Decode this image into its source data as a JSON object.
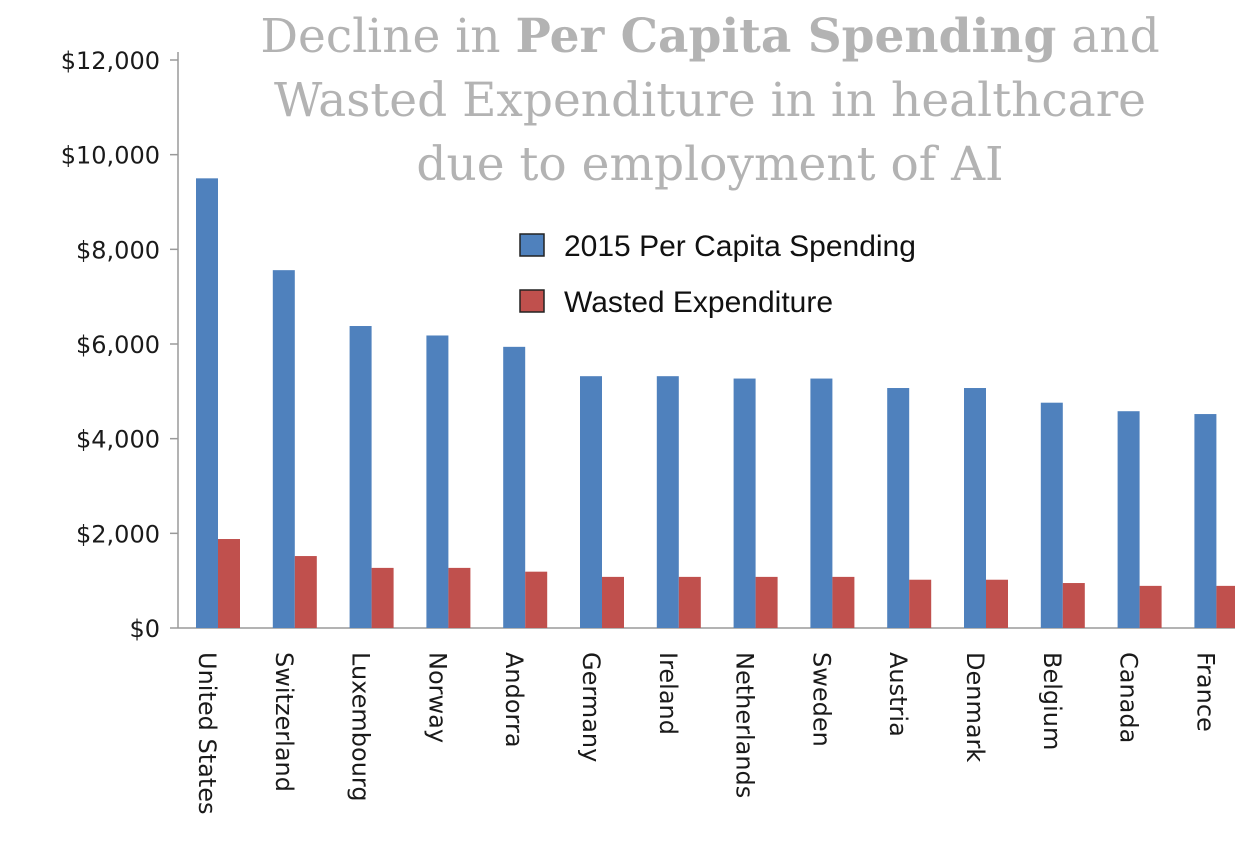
{
  "chart_data": {
    "type": "bar",
    "title": {
      "line1": {
        "pre": "Decline in ",
        "bold": "Per Capita Spending",
        "post": " and"
      },
      "line2": "Wasted Expenditure in in healthcare",
      "line3": "due to employment of AI"
    },
    "categories": [
      "United States",
      "Switzerland",
      "Luxembourg",
      "Norway",
      "Andorra",
      "Germany",
      "Ireland",
      "Netherlands",
      "Sweden",
      "Austria",
      "Denmark",
      "Belgium",
      "Canada",
      "France"
    ],
    "series": [
      {
        "name": "2015 Per Capita Spending",
        "color": "#4f81bd",
        "values": [
          9500,
          7560,
          6380,
          6180,
          5940,
          5320,
          5320,
          5270,
          5270,
          5070,
          5070,
          4760,
          4580,
          4520
        ]
      },
      {
        "name": "Wasted Expenditure",
        "color": "#c0504d",
        "values": [
          1880,
          1520,
          1270,
          1270,
          1190,
          1080,
          1080,
          1080,
          1080,
          1020,
          1020,
          950,
          890,
          890
        ]
      }
    ],
    "yticks": [
      "$0",
      "$2,000",
      "$4,000",
      "$6,000",
      "$8,000",
      "$10,000",
      "$12,000"
    ],
    "ytick_values": [
      0,
      2000,
      4000,
      6000,
      8000,
      10000,
      12000
    ],
    "ylim": [
      0,
      12000
    ],
    "legend_placement": "top-right, inside plot",
    "grid": false
  }
}
